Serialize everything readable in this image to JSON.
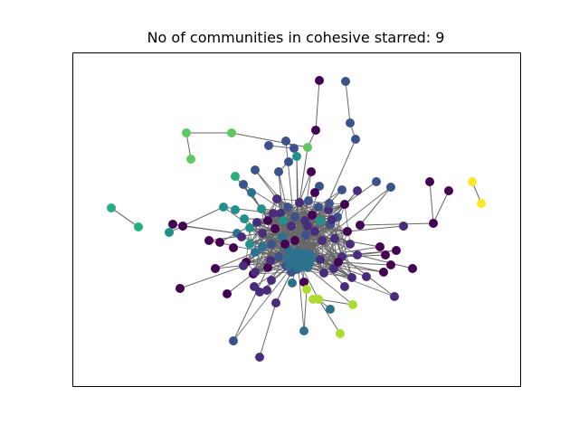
{
  "figure": {
    "title": "No of communities in cohesive starred: 9"
  },
  "colors": {
    "edge": "#666666",
    "frame": "#000000",
    "community_palette": [
      "#440154",
      "#472d7b",
      "#3b528b",
      "#2c728e",
      "#21918c",
      "#28ae80",
      "#5ec962",
      "#addc30",
      "#fde725"
    ]
  }
}
